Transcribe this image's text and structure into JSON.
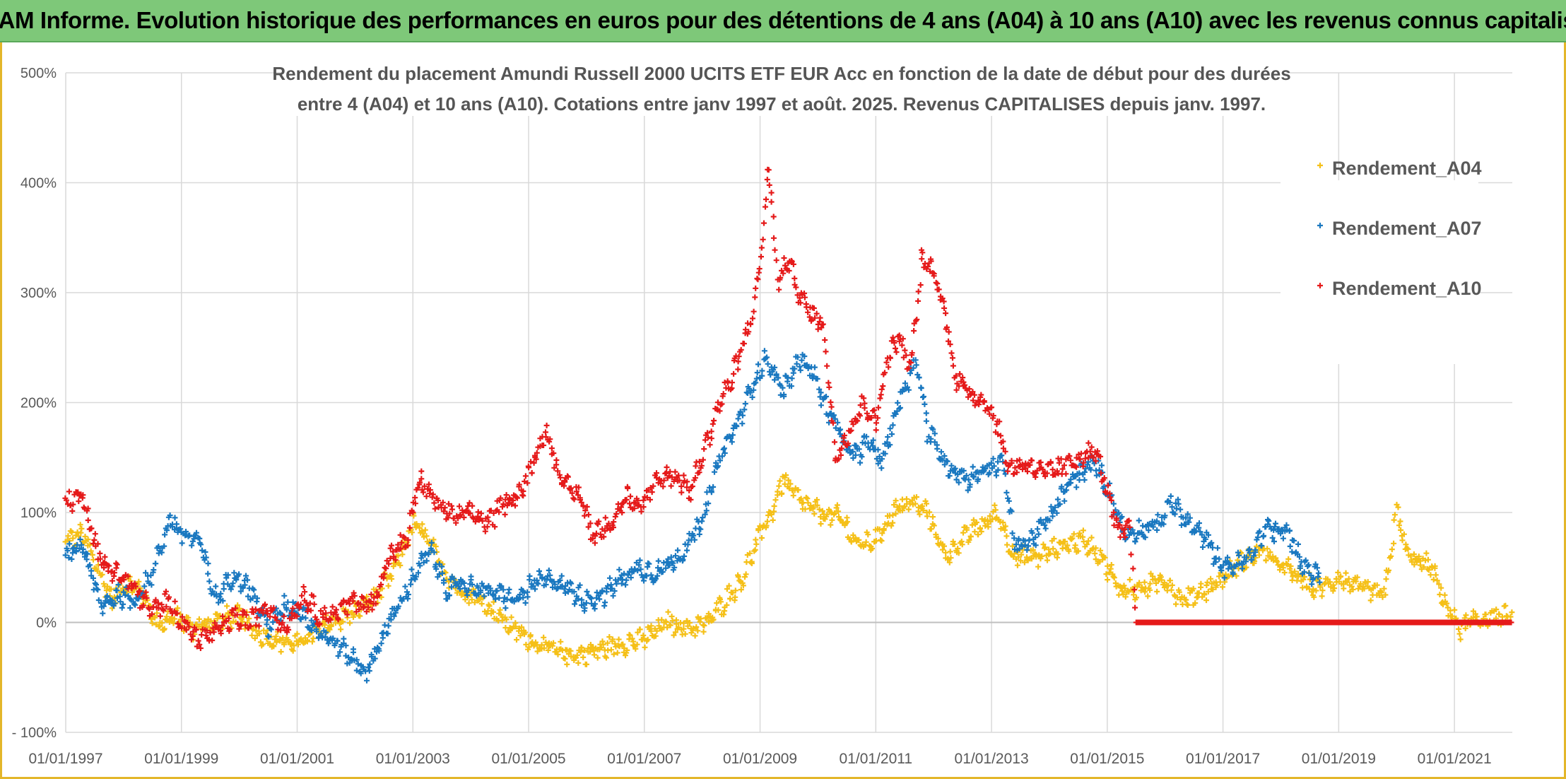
{
  "banner": {
    "title": "ADAM Informe. Evolution historique des performances en euros pour des détentions de 4 ans (A04) à 10 ans (A10) avec les revenus connus capitalisés"
  },
  "chart_data": {
    "type": "scatter",
    "title_lines": [
      "Rendement du placement Amundi Russell 2000 UCITS ETF EUR Acc en fonction de la date de début pour des durées",
      "entre 4 (A04) et 10 ans (A10). Cotations entre janv 1997 et août. 2025. Revenus CAPITALISES depuis janv. 1997."
    ],
    "x_start_year": 1997,
    "x_end_year": 2022,
    "x_tick_labels": [
      "01/01/1997",
      "01/01/1999",
      "01/01/2001",
      "01/01/2003",
      "01/01/2005",
      "01/01/2007",
      "01/01/2009",
      "01/01/2011",
      "01/01/2013",
      "01/01/2015",
      "01/01/2017",
      "01/01/2019",
      "01/01/2021"
    ],
    "y_ticks": [
      -100,
      0,
      100,
      200,
      300,
      400,
      500
    ],
    "y_tick_labels": [
      "- 100%",
      "0%",
      "100%",
      "200%",
      "300%",
      "400%",
      "500%"
    ],
    "ylim": [
      -100,
      500
    ],
    "grid": true,
    "legend_position": "top-right",
    "series": [
      {
        "name": "Rendement_A04",
        "color": "#f5c018",
        "points": [
          [
            1997.0,
            75
          ],
          [
            1997.3,
            80
          ],
          [
            1997.5,
            55
          ],
          [
            1997.8,
            20
          ],
          [
            1998.0,
            35
          ],
          [
            1998.3,
            30
          ],
          [
            1998.6,
            -2
          ],
          [
            1998.9,
            5
          ],
          [
            1999.2,
            -5
          ],
          [
            1999.5,
            0
          ],
          [
            1999.8,
            5
          ],
          [
            2000.0,
            5
          ],
          [
            2000.3,
            -10
          ],
          [
            2000.6,
            -15
          ],
          [
            2001.0,
            -20
          ],
          [
            2001.3,
            -10
          ],
          [
            2001.6,
            0
          ],
          [
            2002.0,
            10
          ],
          [
            2002.3,
            20
          ],
          [
            2002.6,
            40
          ],
          [
            2002.9,
            75
          ],
          [
            2003.0,
            90
          ],
          [
            2003.2,
            80
          ],
          [
            2003.5,
            50
          ],
          [
            2003.8,
            30
          ],
          [
            2004.2,
            20
          ],
          [
            2004.6,
            0
          ],
          [
            2005.0,
            -15
          ],
          [
            2005.4,
            -25
          ],
          [
            2005.8,
            -30
          ],
          [
            2006.2,
            -25
          ],
          [
            2006.6,
            -20
          ],
          [
            2007.0,
            -15
          ],
          [
            2007.4,
            0
          ],
          [
            2007.8,
            -5
          ],
          [
            2008.1,
            0
          ],
          [
            2008.4,
            20
          ],
          [
            2008.7,
            40
          ],
          [
            2009.0,
            80
          ],
          [
            2009.2,
            100
          ],
          [
            2009.4,
            130
          ],
          [
            2009.7,
            110
          ],
          [
            2010.0,
            100
          ],
          [
            2010.4,
            95
          ],
          [
            2010.7,
            70
          ],
          [
            2011.0,
            75
          ],
          [
            2011.3,
            100
          ],
          [
            2011.6,
            110
          ],
          [
            2011.9,
            100
          ],
          [
            2012.2,
            60
          ],
          [
            2012.6,
            80
          ],
          [
            2012.9,
            90
          ],
          [
            2013.1,
            100
          ],
          [
            2013.4,
            60
          ],
          [
            2013.8,
            60
          ],
          [
            2014.2,
            70
          ],
          [
            2014.6,
            75
          ],
          [
            2014.9,
            60
          ],
          [
            2015.2,
            30
          ],
          [
            2015.6,
            30
          ],
          [
            2016.0,
            40
          ],
          [
            2016.3,
            20
          ],
          [
            2016.7,
            30
          ],
          [
            2017.0,
            40
          ],
          [
            2017.3,
            55
          ],
          [
            2017.7,
            65
          ],
          [
            2017.9,
            55
          ],
          [
            2018.2,
            45
          ],
          [
            2018.6,
            30
          ],
          [
            2019.0,
            40
          ],
          [
            2019.4,
            30
          ],
          [
            2019.8,
            25
          ],
          [
            2020.0,
            100
          ],
          [
            2020.2,
            60
          ],
          [
            2020.6,
            50
          ],
          [
            2020.9,
            10
          ],
          [
            2021.1,
            -5
          ],
          [
            2021.3,
            0
          ],
          [
            2021.6,
            5
          ],
          [
            2022.0,
            5
          ]
        ]
      },
      {
        "name": "Rendement_A07",
        "color": "#1a78c0",
        "points": [
          [
            1997.0,
            60
          ],
          [
            1997.3,
            70
          ],
          [
            1997.6,
            15
          ],
          [
            1997.9,
            25
          ],
          [
            1998.2,
            20
          ],
          [
            1998.5,
            45
          ],
          [
            1998.8,
            95
          ],
          [
            1999.0,
            80
          ],
          [
            1999.3,
            75
          ],
          [
            1999.6,
            20
          ],
          [
            1999.9,
            45
          ],
          [
            2000.2,
            30
          ],
          [
            2000.5,
            -5
          ],
          [
            2000.8,
            15
          ],
          [
            2001.1,
            10
          ],
          [
            2001.4,
            -10
          ],
          [
            2001.7,
            -20
          ],
          [
            2002.0,
            -35
          ],
          [
            2002.2,
            -45
          ],
          [
            2002.5,
            -10
          ],
          [
            2002.8,
            20
          ],
          [
            2003.1,
            50
          ],
          [
            2003.3,
            65
          ],
          [
            2003.6,
            30
          ],
          [
            2003.9,
            35
          ],
          [
            2004.2,
            30
          ],
          [
            2004.5,
            25
          ],
          [
            2004.8,
            20
          ],
          [
            2005.1,
            35
          ],
          [
            2005.4,
            40
          ],
          [
            2005.7,
            30
          ],
          [
            2006.0,
            20
          ],
          [
            2006.3,
            25
          ],
          [
            2006.6,
            40
          ],
          [
            2006.9,
            50
          ],
          [
            2007.2,
            45
          ],
          [
            2007.6,
            60
          ],
          [
            2008.0,
            90
          ],
          [
            2008.3,
            150
          ],
          [
            2008.6,
            180
          ],
          [
            2008.9,
            220
          ],
          [
            2009.1,
            240
          ],
          [
            2009.4,
            210
          ],
          [
            2009.7,
            240
          ],
          [
            2009.9,
            230
          ],
          [
            2010.1,
            200
          ],
          [
            2010.3,
            180
          ],
          [
            2010.6,
            150
          ],
          [
            2010.9,
            165
          ],
          [
            2011.1,
            145
          ],
          [
            2011.4,
            200
          ],
          [
            2011.7,
            240
          ],
          [
            2011.9,
            175
          ],
          [
            2012.2,
            145
          ],
          [
            2012.6,
            130
          ],
          [
            2012.9,
            140
          ],
          [
            2013.2,
            145
          ],
          [
            2013.4,
            70
          ],
          [
            2013.7,
            75
          ],
          [
            2014.0,
            95
          ],
          [
            2014.4,
            130
          ],
          [
            2014.8,
            145
          ],
          [
            2015.1,
            110
          ],
          [
            2015.3,
            80
          ],
          [
            2015.6,
            85
          ],
          [
            2015.9,
            90
          ],
          [
            2016.1,
            110
          ],
          [
            2016.4,
            90
          ],
          [
            2016.7,
            75
          ],
          [
            2017.0,
            50
          ],
          [
            2017.4,
            55
          ],
          [
            2017.8,
            90
          ],
          [
            2017.9,
            80
          ],
          [
            2018.1,
            85
          ],
          [
            2018.4,
            50
          ],
          [
            2018.7,
            40
          ]
        ]
      },
      {
        "name": "Rendement_A10",
        "color": "#e51a1a",
        "points": [
          [
            1997.0,
            110
          ],
          [
            1997.3,
            115
          ],
          [
            1997.6,
            55
          ],
          [
            1997.9,
            45
          ],
          [
            1998.2,
            30
          ],
          [
            1998.5,
            10
          ],
          [
            1998.8,
            20
          ],
          [
            1999.0,
            0
          ],
          [
            1999.3,
            -15
          ],
          [
            1999.6,
            -10
          ],
          [
            1999.9,
            5
          ],
          [
            2000.2,
            0
          ],
          [
            2000.5,
            15
          ],
          [
            2000.8,
            -5
          ],
          [
            2001.1,
            25
          ],
          [
            2001.4,
            5
          ],
          [
            2001.7,
            10
          ],
          [
            2002.0,
            20
          ],
          [
            2002.3,
            15
          ],
          [
            2002.6,
            60
          ],
          [
            2002.9,
            75
          ],
          [
            2003.1,
            130
          ],
          [
            2003.4,
            110
          ],
          [
            2003.7,
            95
          ],
          [
            2004.0,
            100
          ],
          [
            2004.3,
            90
          ],
          [
            2004.6,
            110
          ],
          [
            2004.9,
            120
          ],
          [
            2005.1,
            150
          ],
          [
            2005.3,
            175
          ],
          [
            2005.6,
            125
          ],
          [
            2005.9,
            115
          ],
          [
            2006.1,
            80
          ],
          [
            2006.4,
            90
          ],
          [
            2006.7,
            115
          ],
          [
            2006.9,
            100
          ],
          [
            2007.2,
            130
          ],
          [
            2007.5,
            135
          ],
          [
            2007.8,
            120
          ],
          [
            2008.0,
            150
          ],
          [
            2008.3,
            200
          ],
          [
            2008.5,
            220
          ],
          [
            2008.7,
            250
          ],
          [
            2008.9,
            290
          ],
          [
            2009.05,
            350
          ],
          [
            2009.15,
            420
          ],
          [
            2009.3,
            310
          ],
          [
            2009.5,
            330
          ],
          [
            2009.7,
            295
          ],
          [
            2009.9,
            280
          ],
          [
            2010.1,
            270
          ],
          [
            2010.3,
            150
          ],
          [
            2010.6,
            180
          ],
          [
            2010.8,
            200
          ],
          [
            2011.0,
            180
          ],
          [
            2011.2,
            240
          ],
          [
            2011.4,
            260
          ],
          [
            2011.6,
            230
          ],
          [
            2011.8,
            330
          ],
          [
            2012.0,
            320
          ],
          [
            2012.2,
            280
          ],
          [
            2012.4,
            220
          ],
          [
            2012.6,
            210
          ],
          [
            2012.9,
            200
          ],
          [
            2013.1,
            180
          ],
          [
            2013.3,
            140
          ],
          [
            2013.6,
            145
          ],
          [
            2013.9,
            135
          ],
          [
            2014.2,
            140
          ],
          [
            2014.5,
            150
          ],
          [
            2014.8,
            155
          ],
          [
            2015.0,
            120
          ],
          [
            2015.2,
            80
          ],
          [
            2015.4,
            85
          ],
          [
            2015.5,
            0
          ],
          [
            2022.0,
            0
          ]
        ]
      }
    ]
  }
}
